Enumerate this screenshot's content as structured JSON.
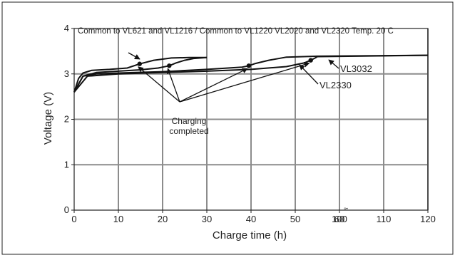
{
  "chart_data": {
    "type": "line",
    "title": "Common to VL621 and VL1216 / Common to VL1220 VL2020 and VL2320 Temp. 20 C",
    "xlabel": "Charge time (h)",
    "ylabel": "Voltage (V)",
    "xlim": [
      0,
      120
    ],
    "ylim": [
      0,
      4
    ],
    "x_ticks": [
      "0",
      "10",
      "20",
      "30",
      "40",
      "50",
      "60",
      "100",
      "110",
      "120"
    ],
    "y_ticks": [
      "0",
      "1",
      "2",
      "3",
      "4"
    ],
    "axis_break_mark": "≈",
    "grid": true,
    "series": [
      {
        "name": "Common to VL621 and VL1216",
        "x": [
          0,
          1,
          2,
          4,
          8,
          12,
          14.8,
          16,
          18,
          22,
          26,
          30
        ],
        "y": [
          2.6,
          2.9,
          3.02,
          3.08,
          3.1,
          3.13,
          3.22,
          3.25,
          3.3,
          3.35,
          3.36,
          3.36
        ]
      },
      {
        "name": "Common to VL1220 VL2020 and VL2320",
        "x": [
          0,
          2,
          5,
          10,
          15,
          19,
          21.5,
          23,
          25,
          27,
          30
        ],
        "y": [
          2.6,
          2.95,
          3.03,
          3.06,
          3.09,
          3.13,
          3.18,
          3.24,
          3.3,
          3.34,
          3.36
        ]
      },
      {
        "name": "VL2330",
        "x": [
          0,
          2,
          5,
          10,
          20,
          30,
          38,
          39.5,
          41,
          44,
          48,
          55,
          120
        ],
        "y": [
          2.6,
          2.95,
          3.0,
          3.02,
          3.05,
          3.1,
          3.15,
          3.18,
          3.23,
          3.3,
          3.37,
          3.39,
          3.41
        ]
      },
      {
        "name": "VL3032",
        "x": [
          0,
          3,
          10,
          20,
          30,
          40,
          48,
          52,
          53.5,
          54.5,
          55,
          120
        ],
        "y": [
          2.6,
          2.95,
          3.0,
          3.03,
          3.06,
          3.1,
          3.16,
          3.24,
          3.3,
          3.35,
          3.38,
          3.41
        ]
      }
    ],
    "annotations": {
      "label_vl3032": "VL3032",
      "label_vl2330": "VL2330",
      "charging_completed_line1": "Charging",
      "charging_completed_line2": "completed"
    },
    "completion_points": [
      {
        "x": 14.8,
        "y": 3.22
      },
      {
        "x": 21.5,
        "y": 3.18
      },
      {
        "x": 39.5,
        "y": 3.18
      },
      {
        "x": 53.5,
        "y": 3.3
      }
    ],
    "colors": {
      "axes": "#222222",
      "grid": "#8c8c8c",
      "lines": "#111111",
      "border": "#222222"
    }
  }
}
